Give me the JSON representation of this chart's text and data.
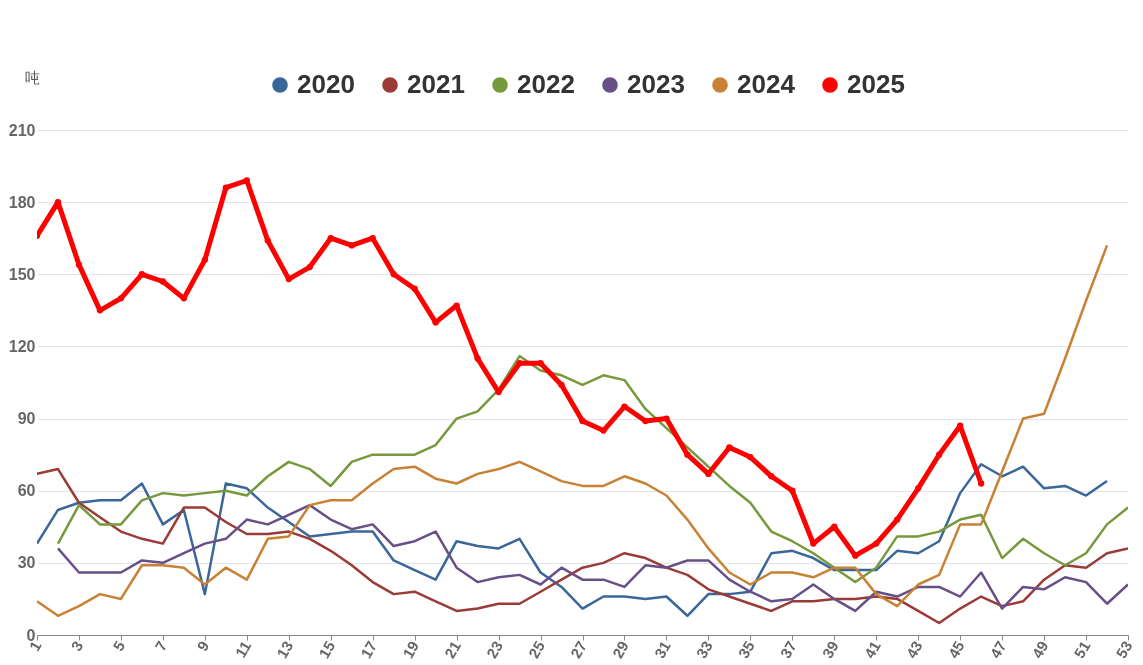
{
  "chart_data": {
    "type": "line",
    "ylabel": "吨",
    "x": [
      1,
      2,
      3,
      4,
      5,
      6,
      7,
      8,
      9,
      10,
      11,
      12,
      13,
      14,
      15,
      16,
      17,
      18,
      19,
      20,
      21,
      22,
      23,
      24,
      25,
      26,
      27,
      28,
      29,
      30,
      31,
      32,
      33,
      34,
      35,
      36,
      37,
      38,
      39,
      40,
      41,
      42,
      43,
      44,
      45,
      46,
      47,
      48,
      49,
      50,
      51,
      52,
      53
    ],
    "xlim": [
      1,
      53
    ],
    "xticks": [
      1,
      3,
      5,
      7,
      9,
      11,
      13,
      15,
      17,
      19,
      21,
      23,
      25,
      27,
      29,
      31,
      33,
      35,
      37,
      39,
      41,
      43,
      45,
      47,
      49,
      51,
      53
    ],
    "ylim": [
      0,
      210
    ],
    "yticks": [
      0,
      30,
      60,
      90,
      120,
      150,
      180,
      210
    ],
    "grid": "y",
    "legend": "top",
    "series": [
      {
        "name": "2020",
        "color": "#3a6699",
        "marker": "none",
        "values": [
          38,
          52,
          55,
          56,
          56,
          63,
          46,
          52,
          17,
          63,
          61,
          53,
          47,
          41,
          42,
          43,
          43,
          31,
          27,
          23,
          39,
          37,
          36,
          40,
          26,
          20,
          11,
          16,
          16,
          15,
          16,
          8,
          17,
          17,
          18,
          34,
          35,
          32,
          27,
          27,
          27,
          35,
          34,
          39,
          59,
          71,
          66,
          70,
          61,
          62,
          58,
          64,
          null
        ]
      },
      {
        "name": "2021",
        "color": "#9b3b36",
        "marker": "none",
        "values": [
          67,
          69,
          55,
          49,
          43,
          40,
          38,
          53,
          53,
          47,
          42,
          42,
          43,
          40,
          35,
          29,
          22,
          17,
          18,
          14,
          10,
          11,
          13,
          13,
          18,
          23,
          28,
          30,
          34,
          32,
          28,
          25,
          19,
          16,
          13,
          10,
          14,
          14,
          15,
          15,
          16,
          15,
          10,
          5,
          11,
          16,
          12,
          14,
          23,
          29,
          28,
          34,
          36
        ]
      },
      {
        "name": "2022",
        "color": "#77993c",
        "marker": "none",
        "values": [
          null,
          38,
          54,
          46,
          46,
          56,
          59,
          58,
          59,
          60,
          58,
          66,
          72,
          69,
          62,
          72,
          75,
          75,
          75,
          79,
          90,
          93,
          102,
          116,
          110,
          108,
          104,
          108,
          106,
          94,
          null,
          78,
          70,
          62,
          55,
          43,
          39,
          34,
          28,
          22,
          28,
          41,
          41,
          43,
          48,
          50,
          32,
          40,
          34,
          29,
          34,
          46,
          53
        ]
      },
      {
        "name": "2023",
        "color": "#674f87",
        "marker": "none",
        "values": [
          null,
          36,
          26,
          26,
          26,
          31,
          30,
          34,
          38,
          40,
          48,
          46,
          50,
          54,
          48,
          44,
          46,
          37,
          39,
          43,
          28,
          22,
          24,
          25,
          21,
          28,
          23,
          23,
          20,
          29,
          28,
          31,
          31,
          23,
          18,
          14,
          15,
          21,
          15,
          10,
          18,
          16,
          20,
          20,
          16,
          26,
          11,
          20,
          19,
          24,
          22,
          13,
          21
        ]
      },
      {
        "name": "2024",
        "color": "#c98133",
        "marker": "none",
        "values": [
          14,
          8,
          12,
          17,
          15,
          29,
          29,
          28,
          21,
          28,
          23,
          40,
          41,
          54,
          56,
          56,
          63,
          69,
          70,
          65,
          63,
          67,
          69,
          72,
          68,
          64,
          62,
          62,
          66,
          63,
          58,
          48,
          36,
          26,
          21,
          26,
          26,
          24,
          28,
          28,
          17,
          12,
          21,
          25,
          46,
          46,
          68,
          90,
          92,
          115,
          139,
          162,
          null
        ]
      },
      {
        "name": "2025",
        "color": "#ff0000",
        "marker": "circle",
        "values": [
          166,
          180,
          154,
          135,
          140,
          150,
          147,
          140,
          156,
          186,
          189,
          164,
          148,
          153,
          165,
          162,
          165,
          150,
          144,
          130,
          137,
          115,
          101,
          113,
          113,
          104,
          89,
          85,
          95,
          89,
          90,
          75,
          67,
          78,
          74,
          66,
          60,
          38,
          45,
          33,
          38,
          48,
          61,
          75,
          87,
          63,
          null,
          null,
          null,
          null,
          null,
          null,
          null
        ]
      }
    ]
  }
}
